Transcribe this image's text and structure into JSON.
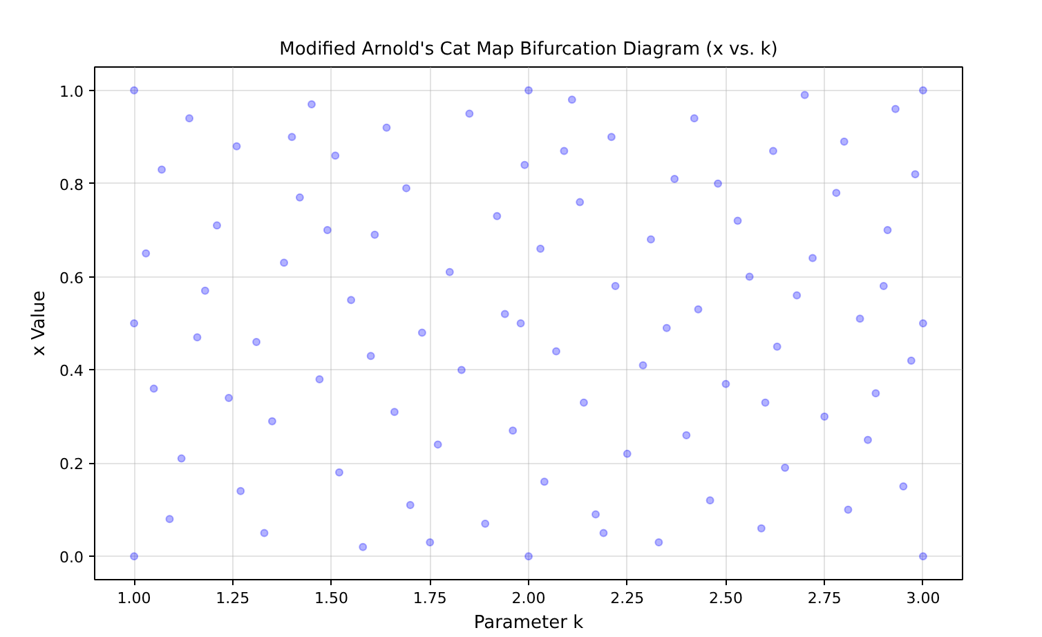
{
  "chart_data": {
    "type": "scatter",
    "title": "Modified Arnold's Cat Map Bifurcation Diagram (x vs. k)",
    "xlabel": "Parameter k",
    "ylabel": "x Value",
    "x": [
      1.0,
      3.0,
      1.0,
      3.0,
      1.0,
      3.0,
      2.0,
      2.0,
      1.07,
      1.12,
      1.18,
      1.05,
      1.14,
      1.09,
      1.21,
      1.27,
      1.31,
      1.26,
      1.35,
      1.38,
      1.33,
      1.42,
      1.47,
      1.45,
      1.52,
      1.55,
      1.51,
      1.58,
      1.61,
      1.66,
      1.64,
      1.7,
      1.73,
      1.69,
      1.77,
      1.8,
      1.85,
      1.83,
      1.89,
      1.92,
      1.96,
      1.94,
      1.99,
      2.04,
      2.07,
      2.03,
      2.11,
      2.14,
      2.17,
      2.13,
      2.22,
      2.25,
      2.21,
      2.29,
      2.33,
      2.31,
      2.37,
      2.4,
      2.43,
      2.46,
      2.42,
      2.5,
      2.53,
      2.56,
      2.59,
      2.62,
      2.65,
      2.63,
      2.7,
      2.72,
      2.75,
      2.78,
      2.81,
      2.84,
      2.8,
      2.88,
      2.91,
      2.95,
      2.93,
      2.97,
      2.98,
      1.03,
      1.24,
      1.49,
      1.75,
      1.98,
      2.35,
      2.6,
      2.86,
      1.16,
      1.4,
      1.6,
      2.09,
      2.19,
      2.48,
      2.68,
      2.9
    ],
    "values": [
      0.0,
      0.0,
      1.0,
      1.0,
      0.5,
      0.5,
      1.0,
      0.0,
      0.83,
      0.21,
      0.57,
      0.36,
      0.94,
      0.08,
      0.71,
      0.14,
      0.46,
      0.88,
      0.29,
      0.63,
      0.05,
      0.77,
      0.38,
      0.97,
      0.18,
      0.55,
      0.86,
      0.02,
      0.69,
      0.31,
      0.92,
      0.11,
      0.48,
      0.79,
      0.24,
      0.61,
      0.95,
      0.4,
      0.07,
      0.73,
      0.27,
      0.52,
      0.84,
      0.16,
      0.44,
      0.66,
      0.98,
      0.33,
      0.09,
      0.76,
      0.58,
      0.22,
      0.9,
      0.41,
      0.03,
      0.68,
      0.81,
      0.26,
      0.53,
      0.12,
      0.94,
      0.37,
      0.72,
      0.6,
      0.06,
      0.87,
      0.19,
      0.45,
      0.99,
      0.64,
      0.3,
      0.78,
      0.1,
      0.51,
      0.89,
      0.35,
      0.7,
      0.15,
      0.96,
      0.42,
      0.82,
      0.65,
      0.34,
      0.7,
      0.03,
      0.5,
      0.49,
      0.33,
      0.25,
      0.47,
      0.9,
      0.43,
      0.87,
      0.05,
      0.8,
      0.56,
      0.58
    ],
    "color": "#0000ff",
    "marker": "circle",
    "xlim": [
      0.9,
      3.1
    ],
    "ylim": [
      -0.05,
      1.05
    ],
    "xticks": [
      {
        "value": 1.0,
        "label": "1.00"
      },
      {
        "value": 1.25,
        "label": "1.25"
      },
      {
        "value": 1.5,
        "label": "1.50"
      },
      {
        "value": 1.75,
        "label": "1.75"
      },
      {
        "value": 2.0,
        "label": "2.00"
      },
      {
        "value": 2.25,
        "label": "2.25"
      },
      {
        "value": 2.5,
        "label": "2.50"
      },
      {
        "value": 2.75,
        "label": "2.75"
      },
      {
        "value": 3.0,
        "label": "3.00"
      }
    ],
    "yticks": [
      {
        "value": 0.0,
        "label": "0.0"
      },
      {
        "value": 0.2,
        "label": "0.2"
      },
      {
        "value": 0.4,
        "label": "0.4"
      },
      {
        "value": 0.6,
        "label": "0.6"
      },
      {
        "value": 0.8,
        "label": "0.8"
      },
      {
        "value": 1.0,
        "label": "1.0"
      }
    ],
    "grid": true
  }
}
